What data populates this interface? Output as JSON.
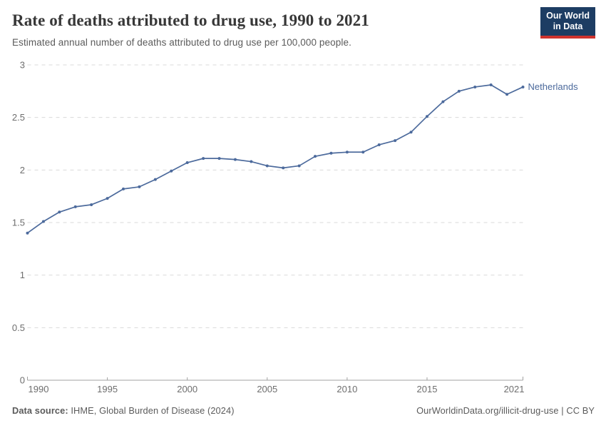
{
  "header": {
    "title": "Rate of deaths attributed to drug use, 1990 to 2021",
    "subtitle": "Estimated annual number of deaths attributed to drug use per 100,000 people.",
    "logo": {
      "line1": "Our World",
      "line2": "in Data"
    }
  },
  "chart_data": {
    "type": "line",
    "title": "Rate of deaths attributed to drug use, 1990 to 2021",
    "xlabel": "",
    "ylabel": "",
    "xlim": [
      1990,
      2021
    ],
    "ylim": [
      0,
      3
    ],
    "xticks": [
      1990,
      1995,
      2000,
      2005,
      2010,
      2015,
      2021
    ],
    "yticks": [
      0,
      0.5,
      1,
      1.5,
      2,
      2.5,
      3
    ],
    "grid": "horizontal-dashed",
    "legend_position": "end-of-line-label",
    "x": [
      1990,
      1991,
      1992,
      1993,
      1994,
      1995,
      1996,
      1997,
      1998,
      1999,
      2000,
      2001,
      2002,
      2003,
      2004,
      2005,
      2006,
      2007,
      2008,
      2009,
      2010,
      2011,
      2012,
      2013,
      2014,
      2015,
      2016,
      2017,
      2018,
      2019,
      2020,
      2021
    ],
    "series": [
      {
        "name": "Netherlands",
        "color": "#4c6a9c",
        "values": [
          1.4,
          1.51,
          1.6,
          1.65,
          1.67,
          1.73,
          1.82,
          1.84,
          1.91,
          1.99,
          2.07,
          2.11,
          2.11,
          2.1,
          2.08,
          2.04,
          2.02,
          2.04,
          2.13,
          2.16,
          2.17,
          2.17,
          2.24,
          2.28,
          2.36,
          2.51,
          2.65,
          2.75,
          2.79,
          2.81,
          2.72,
          2.79
        ]
      }
    ]
  },
  "footer": {
    "source_label": "Data source:",
    "source_text": " IHME, Global Burden of Disease (2024)",
    "credit": "OurWorldinData.org/illicit-drug-use | CC BY"
  },
  "colors": {
    "line": "#4c6a9c",
    "logo_bg": "#1d3d63",
    "logo_accent": "#cf332e",
    "gridline": "#dadada",
    "axis": "#a1a1a1",
    "tick_label": "#6e6e6e"
  }
}
